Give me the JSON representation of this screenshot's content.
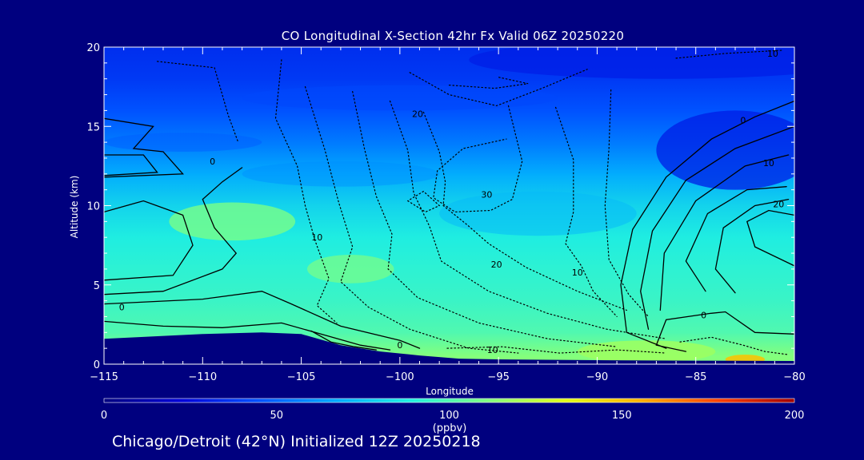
{
  "chart_data": {
    "type": "heatmap",
    "title": "CO Longitudinal X-Section 42hr  Fx Valid 06Z 20250220",
    "xlabel": "Longitude",
    "ylabel": "Altitude (km)",
    "xlim": [
      -115,
      -80
    ],
    "ylim": [
      0,
      20
    ],
    "x_ticks": [
      -115,
      -110,
      -105,
      -100,
      -95,
      -90,
      -85,
      -80
    ],
    "x_tick_labels": [
      "−115",
      "−110",
      "−105",
      "−100",
      "−95",
      "−90",
      "−85",
      "−80"
    ],
    "y_ticks": [
      0,
      5,
      10,
      15,
      20
    ],
    "y_tick_labels": [
      "0",
      "5",
      "10",
      "15",
      "20"
    ],
    "colorbar": {
      "min": 0,
      "max": 200,
      "ticks": [
        0,
        50,
        100,
        150,
        200
      ],
      "tick_labels": [
        "0",
        "50",
        "100",
        "150",
        "200"
      ],
      "units": "(ppbv)",
      "colors": [
        "#00007f",
        "#0000d8",
        "#0050ff",
        "#00a8ff",
        "#20f0e0",
        "#80ff80",
        "#e0ff18",
        "#ffb000",
        "#ff4000",
        "#a00000"
      ]
    },
    "co_profile": {
      "altitudes_km": [
        0.5,
        2,
        4,
        6,
        8,
        10,
        12,
        14,
        16,
        18,
        20
      ],
      "values_ppbv": [
        112,
        100,
        95,
        92,
        88,
        80,
        68,
        55,
        45,
        38,
        35
      ]
    },
    "terrain": {
      "longitudes": [
        -115,
        -110,
        -107,
        -105,
        -103,
        -101,
        -99,
        -97,
        -95,
        -90,
        -85,
        -80
      ],
      "altitude_km": [
        1.6,
        1.9,
        2.0,
        1.9,
        1.2,
        0.8,
        0.55,
        0.35,
        0.3,
        0.25,
        0.22,
        0.2
      ]
    },
    "contour_labels": [
      {
        "text": "0",
        "lon": -109.5,
        "alt": 12.8
      },
      {
        "text": "0",
        "lon": -114.1,
        "alt": 3.6
      },
      {
        "text": "10",
        "lon": -104.2,
        "alt": 8.0
      },
      {
        "text": "20",
        "lon": -99.1,
        "alt": 15.8
      },
      {
        "text": "30",
        "lon": -95.6,
        "alt": 10.7
      },
      {
        "text": "20",
        "lon": -95.1,
        "alt": 6.3
      },
      {
        "text": "10",
        "lon": -91.0,
        "alt": 5.8
      },
      {
        "text": "0",
        "lon": -100.0,
        "alt": 1.2
      },
      {
        "text": "10",
        "lon": -95.3,
        "alt": 0.9
      },
      {
        "text": "0",
        "lon": -84.6,
        "alt": 3.1
      },
      {
        "text": "0",
        "lon": -82.6,
        "alt": 15.4
      },
      {
        "text": "10",
        "lon": -81.3,
        "alt": 12.7
      },
      {
        "text": "20",
        "lon": -80.8,
        "alt": 10.1
      },
      {
        "text": "10",
        "lon": -81.1,
        "alt": 19.6
      }
    ]
  },
  "footer_text": "Chicago/Detroit (42°N) Initialized 12Z 20250218"
}
